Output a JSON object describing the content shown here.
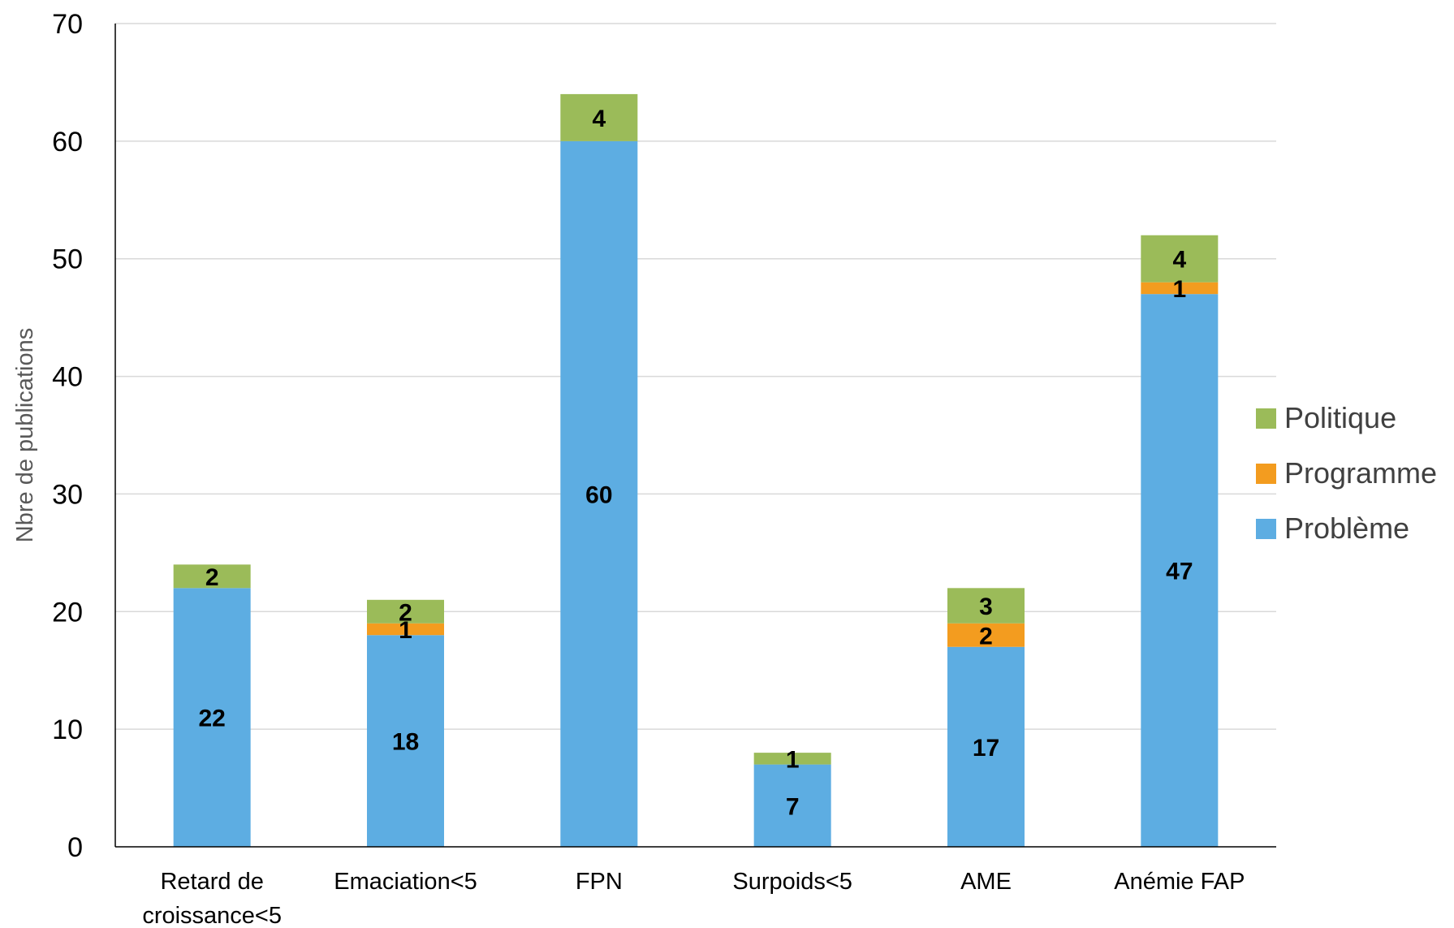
{
  "chart_data": {
    "type": "bar",
    "stacked": true,
    "categories": [
      [
        "Retard de",
        "croissance<5"
      ],
      [
        "Emaciation<5"
      ],
      [
        "FPN"
      ],
      [
        "Surpoids<5"
      ],
      [
        "AME"
      ],
      [
        "Anémie FAP"
      ]
    ],
    "series": [
      {
        "name": "Problème",
        "color": "#5DADE2",
        "values": [
          22,
          18,
          60,
          7,
          17,
          47
        ],
        "labels": [
          "22",
          "18",
          "60",
          "7",
          "17",
          "47"
        ]
      },
      {
        "name": "Programme",
        "color": "#F39C1F",
        "values": [
          0,
          1,
          0,
          0,
          2,
          1
        ],
        "labels": [
          "",
          "1",
          "",
          "",
          "2",
          "1"
        ]
      },
      {
        "name": "Politique",
        "color": "#9BBB59",
        "values": [
          2,
          2,
          4,
          1,
          3,
          4
        ],
        "labels": [
          "2",
          "2",
          "4",
          "1",
          "3",
          "4"
        ]
      }
    ],
    "title": "",
    "xlabel": "",
    "ylabel": "Nbre de publications",
    "ylim": [
      0,
      70
    ],
    "yticks": [
      "0",
      "10",
      "20",
      "30",
      "40",
      "50",
      "60",
      "70"
    ],
    "grid": true,
    "legend": {
      "position": "right",
      "order": [
        "Politique",
        "Programme",
        "Problème"
      ]
    },
    "colors": {
      "gridline": "#D9D9D9",
      "axis": "#000000",
      "axis_title": "#595959",
      "legend_text": "#404040"
    }
  }
}
